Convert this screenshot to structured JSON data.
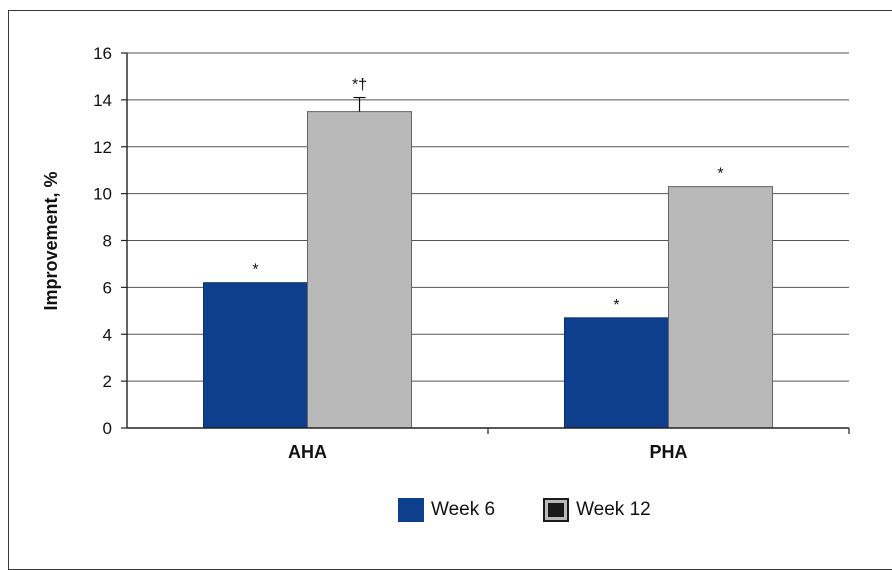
{
  "chart_data": {
    "type": "bar",
    "categories": [
      "AHA",
      "PHA"
    ],
    "series": [
      {
        "name": "Week 6",
        "values": [
          6.2,
          4.7
        ],
        "color": "#0d3f8c",
        "annotations": [
          "*",
          "*"
        ]
      },
      {
        "name": "Week 12",
        "values": [
          13.5,
          10.3
        ],
        "color": "#b9b9b9",
        "annotations": [
          "*†",
          "*"
        ]
      }
    ],
    "error_bars": {
      "Week 12": [
        0.6,
        null
      ]
    },
    "title": "",
    "xlabel": "",
    "ylabel": "Improvement, %",
    "ylim": [
      0,
      16
    ],
    "yticks": [
      0,
      2,
      4,
      6,
      8,
      10,
      12,
      14,
      16
    ],
    "grid": true,
    "legend_position": "bottom-center"
  }
}
